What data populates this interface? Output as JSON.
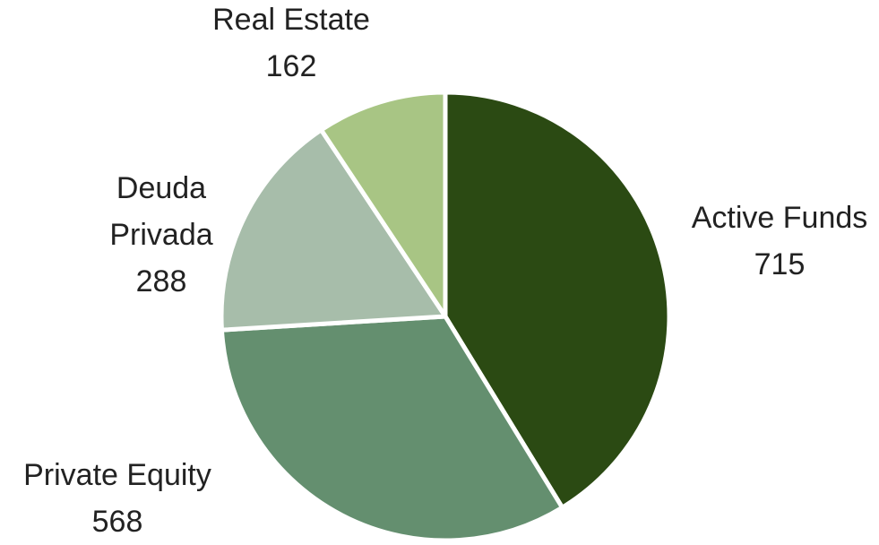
{
  "chart_data": {
    "type": "pie",
    "categories": [
      "Active Funds",
      "Private Equity",
      "Deuda Privada",
      "Real Estate"
    ],
    "values": [
      715,
      568,
      288,
      162
    ],
    "colors": [
      "#2b4a13",
      "#648f6f",
      "#a7bdaa",
      "#a8c584"
    ]
  }
}
